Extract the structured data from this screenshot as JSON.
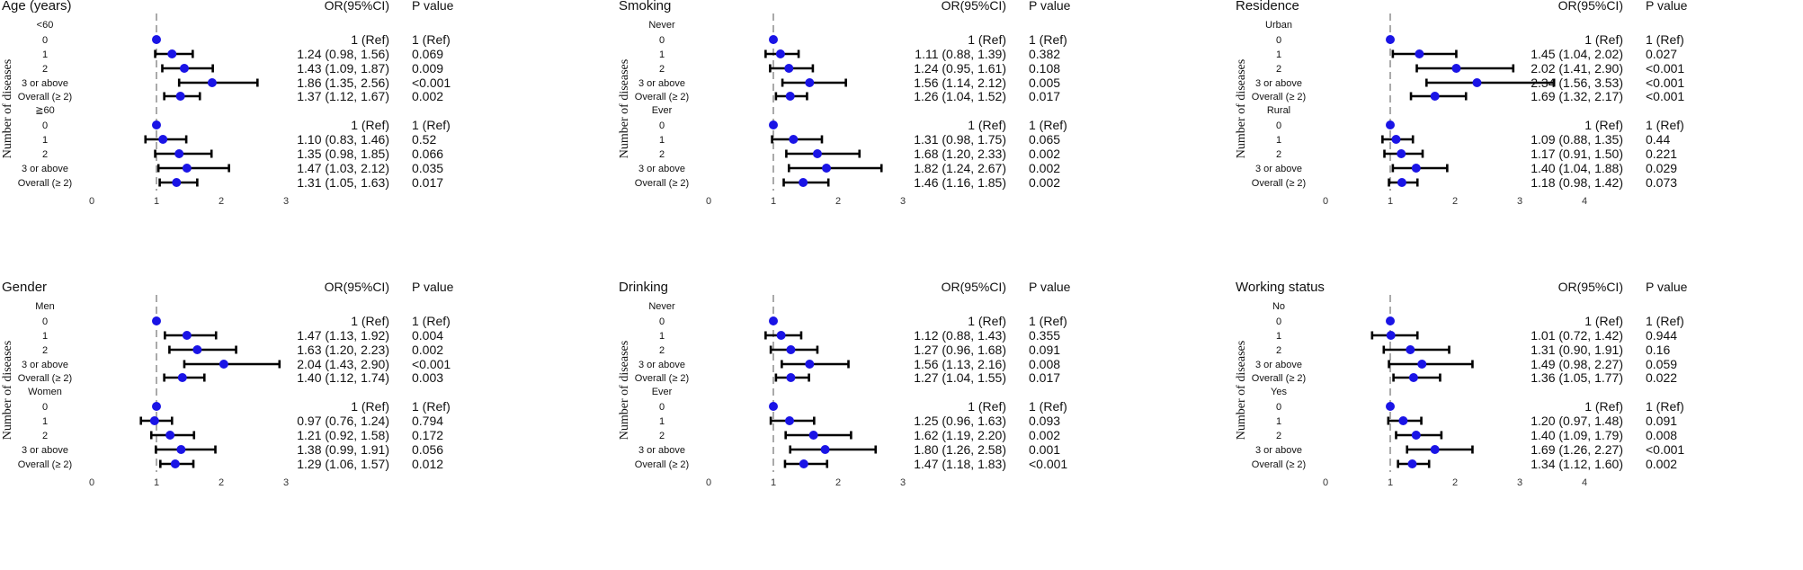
{
  "colors": {
    "point": "#1a14e6",
    "ci": "#000000",
    "reference": "#aaaaaa",
    "text": "#111111"
  },
  "chart_data": [
    {
      "type": "forest",
      "title": "Age (years)",
      "or_header": "OR(95%CI)",
      "p_header": "P value",
      "ylabel": "Number of diseases",
      "xlim": [
        0,
        3
      ],
      "xticks": [
        "0",
        "1",
        "2",
        "3"
      ],
      "reference": 1,
      "groups": [
        {
          "name": "<60",
          "rows": [
            {
              "label": "0",
              "or": 1,
              "lo": 1,
              "hi": 1,
              "or_text": "1 (Ref)",
              "p_text": "1 (Ref)"
            },
            {
              "label": "1",
              "or": 1.24,
              "lo": 0.98,
              "hi": 1.56,
              "or_text": "1.24 (0.98, 1.56)",
              "p_text": "0.069"
            },
            {
              "label": "2",
              "or": 1.43,
              "lo": 1.09,
              "hi": 1.87,
              "or_text": "1.43 (1.09, 1.87)",
              "p_text": "0.009"
            },
            {
              "label": "3 or above",
              "or": 1.86,
              "lo": 1.35,
              "hi": 2.56,
              "or_text": "1.86 (1.35, 2.56)",
              "p_text": "<0.001"
            },
            {
              "label": "Overall (≥ 2)",
              "or": 1.37,
              "lo": 1.12,
              "hi": 1.67,
              "or_text": "1.37 (1.12, 1.67)",
              "p_text": "0.002"
            }
          ]
        },
        {
          "name": "≧60",
          "rows": [
            {
              "label": "0",
              "or": 1,
              "lo": 1,
              "hi": 1,
              "or_text": "1 (Ref)",
              "p_text": "1 (Ref)"
            },
            {
              "label": "1",
              "or": 1.1,
              "lo": 0.83,
              "hi": 1.46,
              "or_text": "1.10 (0.83, 1.46)",
              "p_text": "0.52"
            },
            {
              "label": "2",
              "or": 1.35,
              "lo": 0.98,
              "hi": 1.85,
              "or_text": "1.35 (0.98, 1.85)",
              "p_text": "0.066"
            },
            {
              "label": "3 or above",
              "or": 1.47,
              "lo": 1.03,
              "hi": 2.12,
              "or_text": "1.47 (1.03, 2.12)",
              "p_text": "0.035"
            },
            {
              "label": "Overall (≥ 2)",
              "or": 1.31,
              "lo": 1.05,
              "hi": 1.63,
              "or_text": "1.31 (1.05, 1.63)",
              "p_text": "0.017"
            }
          ]
        }
      ]
    },
    {
      "type": "forest",
      "title": "Smoking",
      "or_header": "OR(95%CI)",
      "p_header": "P value",
      "ylabel": "Number of diseases",
      "xlim": [
        0,
        3
      ],
      "xticks": [
        "0",
        "1",
        "2",
        "3"
      ],
      "reference": 1,
      "groups": [
        {
          "name": "Never",
          "rows": [
            {
              "label": "0",
              "or": 1,
              "lo": 1,
              "hi": 1,
              "or_text": "1 (Ref)",
              "p_text": "1 (Ref)"
            },
            {
              "label": "1",
              "or": 1.11,
              "lo": 0.88,
              "hi": 1.39,
              "or_text": "1.11 (0.88, 1.39)",
              "p_text": "0.382"
            },
            {
              "label": "2",
              "or": 1.24,
              "lo": 0.95,
              "hi": 1.61,
              "or_text": "1.24 (0.95, 1.61)",
              "p_text": "0.108"
            },
            {
              "label": "3 or above",
              "or": 1.56,
              "lo": 1.14,
              "hi": 2.12,
              "or_text": "1.56 (1.14, 2.12)",
              "p_text": "0.005"
            },
            {
              "label": "Overall (≥ 2)",
              "or": 1.26,
              "lo": 1.04,
              "hi": 1.52,
              "or_text": "1.26 (1.04, 1.52)",
              "p_text": "0.017"
            }
          ]
        },
        {
          "name": "Ever",
          "rows": [
            {
              "label": "0",
              "or": 1,
              "lo": 1,
              "hi": 1,
              "or_text": "1 (Ref)",
              "p_text": "1 (Ref)"
            },
            {
              "label": "1",
              "or": 1.31,
              "lo": 0.98,
              "hi": 1.75,
              "or_text": "1.31 (0.98, 1.75)",
              "p_text": "0.065"
            },
            {
              "label": "2",
              "or": 1.68,
              "lo": 1.2,
              "hi": 2.33,
              "or_text": "1.68 (1.20, 2.33)",
              "p_text": "0.002"
            },
            {
              "label": "3 or above",
              "or": 1.82,
              "lo": 1.24,
              "hi": 2.67,
              "or_text": "1.82 (1.24, 2.67)",
              "p_text": "0.002"
            },
            {
              "label": "Overall (≥ 2)",
              "or": 1.46,
              "lo": 1.16,
              "hi": 1.85,
              "or_text": "1.46 (1.16, 1.85)",
              "p_text": "0.002"
            }
          ]
        }
      ]
    },
    {
      "type": "forest",
      "title": "Residence",
      "or_header": "OR(95%CI)",
      "p_header": "P value",
      "ylabel": "Number of diseases",
      "xlim": [
        0,
        4
      ],
      "xticks": [
        "0",
        "1",
        "2",
        "3",
        "4"
      ],
      "reference": 1,
      "groups": [
        {
          "name": "Urban",
          "rows": [
            {
              "label": "0",
              "or": 1,
              "lo": 1,
              "hi": 1,
              "or_text": "1 (Ref)",
              "p_text": "1 (Ref)"
            },
            {
              "label": "1",
              "or": 1.45,
              "lo": 1.04,
              "hi": 2.02,
              "or_text": "1.45 (1.04, 2.02)",
              "p_text": "0.027"
            },
            {
              "label": "2",
              "or": 2.02,
              "lo": 1.41,
              "hi": 2.9,
              "or_text": "2.02 (1.41, 2.90)",
              "p_text": "<0.001"
            },
            {
              "label": "3 or above",
              "or": 2.34,
              "lo": 1.56,
              "hi": 3.53,
              "or_text": "2.34 (1.56, 3.53)",
              "p_text": "<0.001"
            },
            {
              "label": "Overall (≥ 2)",
              "or": 1.69,
              "lo": 1.32,
              "hi": 2.17,
              "or_text": "1.69 (1.32, 2.17)",
              "p_text": "<0.001"
            }
          ]
        },
        {
          "name": "Rural",
          "rows": [
            {
              "label": "0",
              "or": 1,
              "lo": 1,
              "hi": 1,
              "or_text": "1 (Ref)",
              "p_text": "1 (Ref)"
            },
            {
              "label": "1",
              "or": 1.09,
              "lo": 0.88,
              "hi": 1.35,
              "or_text": "1.09 (0.88, 1.35)",
              "p_text": "0.44"
            },
            {
              "label": "2",
              "or": 1.17,
              "lo": 0.91,
              "hi": 1.5,
              "or_text": "1.17 (0.91, 1.50)",
              "p_text": "0.221"
            },
            {
              "label": "3 or above",
              "or": 1.4,
              "lo": 1.04,
              "hi": 1.88,
              "or_text": "1.40 (1.04, 1.88)",
              "p_text": "0.029"
            },
            {
              "label": "Overall (≥ 2)",
              "or": 1.18,
              "lo": 0.98,
              "hi": 1.42,
              "or_text": "1.18 (0.98, 1.42)",
              "p_text": "0.073"
            }
          ]
        }
      ]
    },
    {
      "type": "forest",
      "title": "Gender",
      "or_header": "OR(95%CI)",
      "p_header": "P value",
      "ylabel": "Number of diseases",
      "xlim": [
        0,
        3
      ],
      "xticks": [
        "0",
        "1",
        "2",
        "3"
      ],
      "reference": 1,
      "groups": [
        {
          "name": "Men",
          "rows": [
            {
              "label": "0",
              "or": 1,
              "lo": 1,
              "hi": 1,
              "or_text": "1 (Ref)",
              "p_text": "1 (Ref)"
            },
            {
              "label": "1",
              "or": 1.47,
              "lo": 1.13,
              "hi": 1.92,
              "or_text": "1.47 (1.13, 1.92)",
              "p_text": "0.004"
            },
            {
              "label": "2",
              "or": 1.63,
              "lo": 1.2,
              "hi": 2.23,
              "or_text": "1.63 (1.20, 2.23)",
              "p_text": "0.002"
            },
            {
              "label": "3 or above",
              "or": 2.04,
              "lo": 1.43,
              "hi": 2.9,
              "or_text": "2.04 (1.43, 2.90)",
              "p_text": "<0.001"
            },
            {
              "label": "Overall (≥ 2)",
              "or": 1.4,
              "lo": 1.12,
              "hi": 1.74,
              "or_text": "1.40 (1.12, 1.74)",
              "p_text": "0.003"
            }
          ]
        },
        {
          "name": "Women",
          "rows": [
            {
              "label": "0",
              "or": 1,
              "lo": 1,
              "hi": 1,
              "or_text": "1 (Ref)",
              "p_text": "1 (Ref)"
            },
            {
              "label": "1",
              "or": 0.97,
              "lo": 0.76,
              "hi": 1.24,
              "or_text": "0.97 (0.76, 1.24)",
              "p_text": "0.794"
            },
            {
              "label": "2",
              "or": 1.21,
              "lo": 0.92,
              "hi": 1.58,
              "or_text": "1.21 (0.92, 1.58)",
              "p_text": "0.172"
            },
            {
              "label": "3 or above",
              "or": 1.38,
              "lo": 0.99,
              "hi": 1.91,
              "or_text": "1.38 (0.99, 1.91)",
              "p_text": "0.056"
            },
            {
              "label": "Overall (≥ 2)",
              "or": 1.29,
              "lo": 1.06,
              "hi": 1.57,
              "or_text": "1.29 (1.06, 1.57)",
              "p_text": "0.012"
            }
          ]
        }
      ]
    },
    {
      "type": "forest",
      "title": "Drinking",
      "or_header": "OR(95%CI)",
      "p_header": "P value",
      "ylabel": "Number of diseases",
      "xlim": [
        0,
        3
      ],
      "xticks": [
        "0",
        "1",
        "2",
        "3"
      ],
      "reference": 1,
      "groups": [
        {
          "name": "Never",
          "rows": [
            {
              "label": "0",
              "or": 1,
              "lo": 1,
              "hi": 1,
              "or_text": "1 (Ref)",
              "p_text": "1 (Ref)"
            },
            {
              "label": "1",
              "or": 1.12,
              "lo": 0.88,
              "hi": 1.43,
              "or_text": "1.12 (0.88, 1.43)",
              "p_text": "0.355"
            },
            {
              "label": "2",
              "or": 1.27,
              "lo": 0.96,
              "hi": 1.68,
              "or_text": "1.27 (0.96, 1.68)",
              "p_text": "0.091"
            },
            {
              "label": "3 or above",
              "or": 1.56,
              "lo": 1.13,
              "hi": 2.16,
              "or_text": "1.56 (1.13, 2.16)",
              "p_text": "0.008"
            },
            {
              "label": "Overall (≥ 2)",
              "or": 1.27,
              "lo": 1.04,
              "hi": 1.55,
              "or_text": "1.27 (1.04, 1.55)",
              "p_text": "0.017"
            }
          ]
        },
        {
          "name": "Ever",
          "rows": [
            {
              "label": "0",
              "or": 1,
              "lo": 1,
              "hi": 1,
              "or_text": "1 (Ref)",
              "p_text": "1 (Ref)"
            },
            {
              "label": "1",
              "or": 1.25,
              "lo": 0.96,
              "hi": 1.63,
              "or_text": "1.25 (0.96, 1.63)",
              "p_text": "0.093"
            },
            {
              "label": "2",
              "or": 1.62,
              "lo": 1.19,
              "hi": 2.2,
              "or_text": "1.62 (1.19, 2.20)",
              "p_text": "0.002"
            },
            {
              "label": "3 or above",
              "or": 1.8,
              "lo": 1.26,
              "hi": 2.58,
              "or_text": "1.80 (1.26, 2.58)",
              "p_text": "0.001"
            },
            {
              "label": "Overall (≥ 2)",
              "or": 1.47,
              "lo": 1.18,
              "hi": 1.83,
              "or_text": "1.47 (1.18, 1.83)",
              "p_text": "<0.001"
            }
          ]
        }
      ]
    },
    {
      "type": "forest",
      "title": "Working status",
      "or_header": "OR(95%CI)",
      "p_header": "P value",
      "ylabel": "Number of diseases",
      "xlim": [
        0,
        4
      ],
      "xticks": [
        "0",
        "1",
        "2",
        "3",
        "4"
      ],
      "reference": 1,
      "groups": [
        {
          "name": "No",
          "rows": [
            {
              "label": "0",
              "or": 1,
              "lo": 1,
              "hi": 1,
              "or_text": "1 (Ref)",
              "p_text": "1 (Ref)"
            },
            {
              "label": "1",
              "or": 1.01,
              "lo": 0.72,
              "hi": 1.42,
              "or_text": "1.01 (0.72, 1.42)",
              "p_text": "0.944"
            },
            {
              "label": "2",
              "or": 1.31,
              "lo": 0.9,
              "hi": 1.91,
              "or_text": "1.31 (0.90, 1.91)",
              "p_text": "0.16"
            },
            {
              "label": "3 or above",
              "or": 1.49,
              "lo": 0.98,
              "hi": 2.27,
              "or_text": "1.49 (0.98, 2.27)",
              "p_text": "0.059"
            },
            {
              "label": "Overall (≥ 2)",
              "or": 1.36,
              "lo": 1.05,
              "hi": 1.77,
              "or_text": "1.36 (1.05, 1.77)",
              "p_text": "0.022"
            }
          ]
        },
        {
          "name": "Yes",
          "rows": [
            {
              "label": "0",
              "or": 1,
              "lo": 1,
              "hi": 1,
              "or_text": "1 (Ref)",
              "p_text": "1 (Ref)"
            },
            {
              "label": "1",
              "or": 1.2,
              "lo": 0.97,
              "hi": 1.48,
              "or_text": "1.20 (0.97, 1.48)",
              "p_text": "0.091"
            },
            {
              "label": "2",
              "or": 1.4,
              "lo": 1.09,
              "hi": 1.79,
              "or_text": "1.40 (1.09, 1.79)",
              "p_text": "0.008"
            },
            {
              "label": "3 or above",
              "or": 1.69,
              "lo": 1.26,
              "hi": 2.27,
              "or_text": "1.69 (1.26, 2.27)",
              "p_text": "<0.001"
            },
            {
              "label": "Overall (≥ 2)",
              "or": 1.34,
              "lo": 1.12,
              "hi": 1.6,
              "or_text": "1.34 (1.12, 1.60)",
              "p_text": "0.002"
            }
          ]
        }
      ]
    }
  ]
}
